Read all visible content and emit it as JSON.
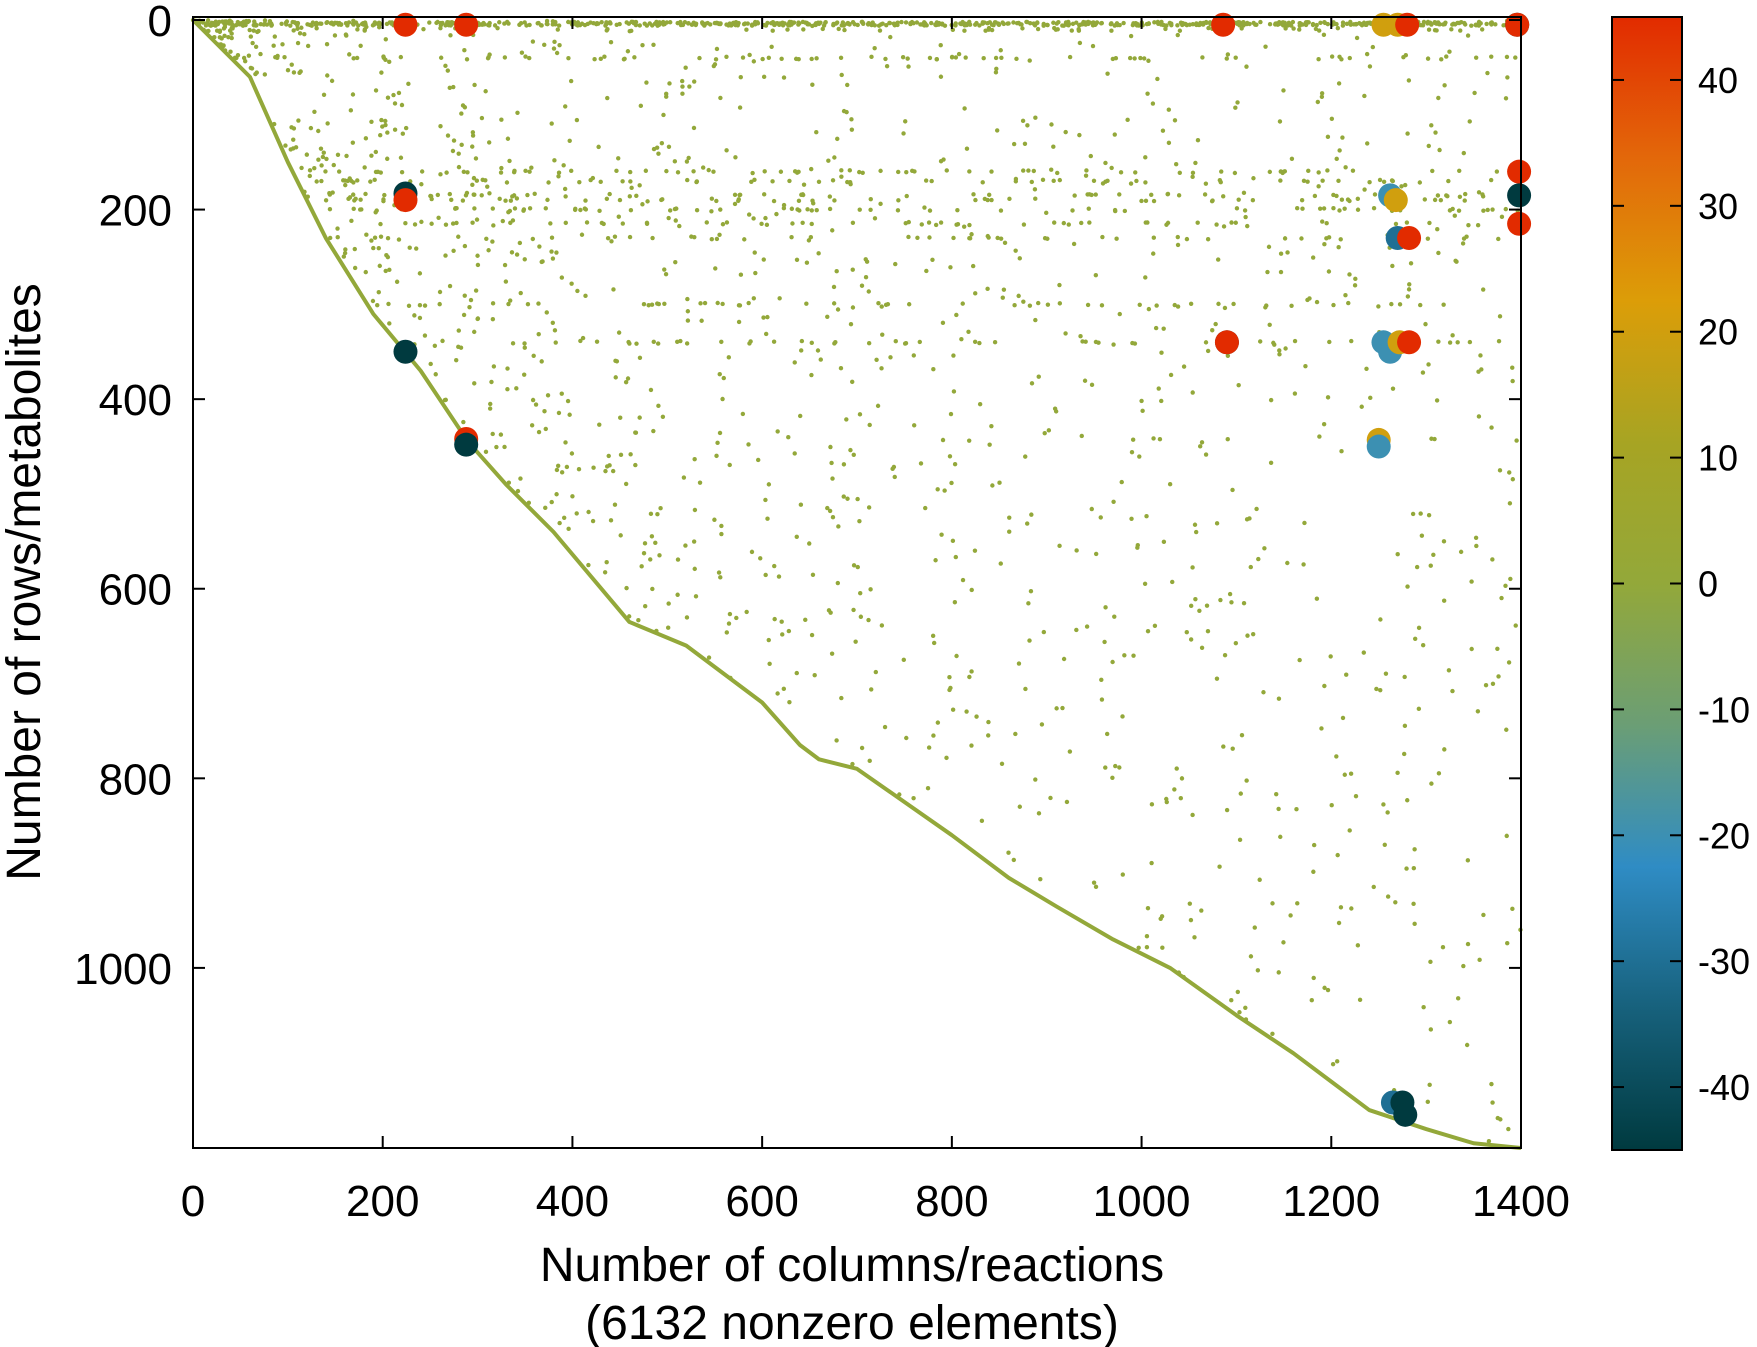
{
  "chart_data": {
    "type": "scatter",
    "title": "",
    "xlabel": "Number of columns/reactions",
    "xlabel_line2": "(6132 nonzero elements)",
    "ylabel": "Number of rows/metabolites",
    "xlim": [
      0,
      1400
    ],
    "ylim": [
      1190,
      0
    ],
    "y_axis_inverted": true,
    "grid": false,
    "legend": "none",
    "x_ticks": [
      0,
      200,
      400,
      600,
      800,
      1000,
      1200,
      1400
    ],
    "y_ticks": [
      0,
      200,
      400,
      600,
      800,
      1000
    ],
    "colorbar": {
      "range": [
        -45,
        45
      ],
      "ticks": [
        40,
        30,
        20,
        10,
        0,
        -10,
        -20,
        -30,
        -40
      ],
      "colors": [
        "#003a3f",
        "#17617c",
        "#2f8cc4",
        "#6b9e75",
        "#93a83a",
        "#a7a423",
        "#dc9d08",
        "#e3680a",
        "#e22b00"
      ]
    },
    "diagonal_curve": [
      [
        0,
        0
      ],
      [
        60,
        60
      ],
      [
        100,
        150
      ],
      [
        140,
        230
      ],
      [
        190,
        310
      ],
      [
        240,
        370
      ],
      [
        290,
        445
      ],
      [
        330,
        490
      ],
      [
        380,
        540
      ],
      [
        460,
        635
      ],
      [
        520,
        660
      ],
      [
        600,
        720
      ],
      [
        640,
        765
      ],
      [
        660,
        780
      ],
      [
        700,
        790
      ],
      [
        750,
        825
      ],
      [
        800,
        860
      ],
      [
        860,
        905
      ],
      [
        910,
        935
      ],
      [
        970,
        970
      ],
      [
        1030,
        1000
      ],
      [
        1100,
        1050
      ],
      [
        1160,
        1090
      ],
      [
        1200,
        1120
      ],
      [
        1240,
        1150
      ],
      [
        1300,
        1170
      ],
      [
        1350,
        1185
      ],
      [
        1400,
        1190
      ]
    ],
    "small_points_value": 0,
    "large_points": [
      {
        "x": 224,
        "y": 5,
        "v": 45
      },
      {
        "x": 288,
        "y": 5,
        "v": 45
      },
      {
        "x": 1086,
        "y": 5,
        "v": 45
      },
      {
        "x": 1255,
        "y": 5,
        "v": 20
      },
      {
        "x": 1270,
        "y": 5,
        "v": 20
      },
      {
        "x": 1280,
        "y": 5,
        "v": 45
      },
      {
        "x": 1396,
        "y": 5,
        "v": -45
      },
      {
        "x": 1396,
        "y": 5,
        "v": 45
      },
      {
        "x": 224,
        "y": 183,
        "v": -45
      },
      {
        "x": 224,
        "y": 190,
        "v": 45
      },
      {
        "x": 1398,
        "y": 160,
        "v": 45
      },
      {
        "x": 1398,
        "y": 185,
        "v": -45
      },
      {
        "x": 1398,
        "y": 215,
        "v": 45
      },
      {
        "x": 1262,
        "y": 185,
        "v": -20
      },
      {
        "x": 1268,
        "y": 190,
        "v": 20
      },
      {
        "x": 1270,
        "y": 230,
        "v": -30
      },
      {
        "x": 1282,
        "y": 230,
        "v": 45
      },
      {
        "x": 1090,
        "y": 340,
        "v": -45
      },
      {
        "x": 1090,
        "y": 340,
        "v": 45
      },
      {
        "x": 1255,
        "y": 340,
        "v": -20
      },
      {
        "x": 1262,
        "y": 350,
        "v": -20
      },
      {
        "x": 1272,
        "y": 340,
        "v": 20
      },
      {
        "x": 1282,
        "y": 340,
        "v": 45
      },
      {
        "x": 224,
        "y": 350,
        "v": -45
      },
      {
        "x": 288,
        "y": 442,
        "v": 45
      },
      {
        "x": 288,
        "y": 448,
        "v": -45
      },
      {
        "x": 1250,
        "y": 443,
        "v": 20
      },
      {
        "x": 1250,
        "y": 450,
        "v": -20
      },
      {
        "x": 1265,
        "y": 1142,
        "v": -30
      },
      {
        "x": 1275,
        "y": 1142,
        "v": -45
      },
      {
        "x": 1278,
        "y": 1155,
        "v": -45
      }
    ]
  }
}
